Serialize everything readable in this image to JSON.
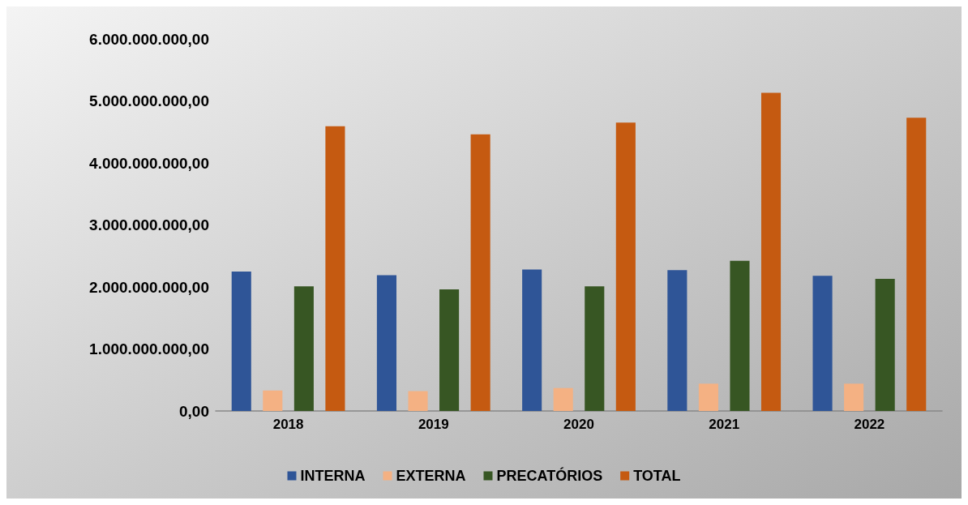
{
  "chart_data": {
    "type": "bar",
    "categories": [
      "2018",
      "2019",
      "2020",
      "2021",
      "2022"
    ],
    "series": [
      {
        "name": "INTERNA",
        "color": "#2f5597",
        "values": [
          2250000000,
          2190000000,
          2280000000,
          2270000000,
          2180000000
        ]
      },
      {
        "name": "EXTERNA",
        "color": "#f4b183",
        "values": [
          330000000,
          320000000,
          370000000,
          440000000,
          440000000
        ]
      },
      {
        "name": "PRECATÓRIOS",
        "color": "#375623",
        "values": [
          2010000000,
          1960000000,
          2010000000,
          2420000000,
          2130000000
        ]
      },
      {
        "name": "TOTAL",
        "color": "#c55a11",
        "values": [
          4590000000,
          4460000000,
          4650000000,
          5130000000,
          4730000000
        ]
      }
    ],
    "ylim": [
      0,
      6000000000
    ],
    "yticks": [
      {
        "value": 0,
        "label": "0,00"
      },
      {
        "value": 1000000000,
        "label": "1.000.000.000,00"
      },
      {
        "value": 2000000000,
        "label": "2.000.000.000,00"
      },
      {
        "value": 3000000000,
        "label": "3.000.000.000,00"
      },
      {
        "value": 4000000000,
        "label": "4.000.000.000,00"
      },
      {
        "value": 5000000000,
        "label": "5.000.000.000,00"
      },
      {
        "value": 6000000000,
        "label": "6.000.000.000,00"
      }
    ],
    "grid": false,
    "legend": "bottom"
  }
}
